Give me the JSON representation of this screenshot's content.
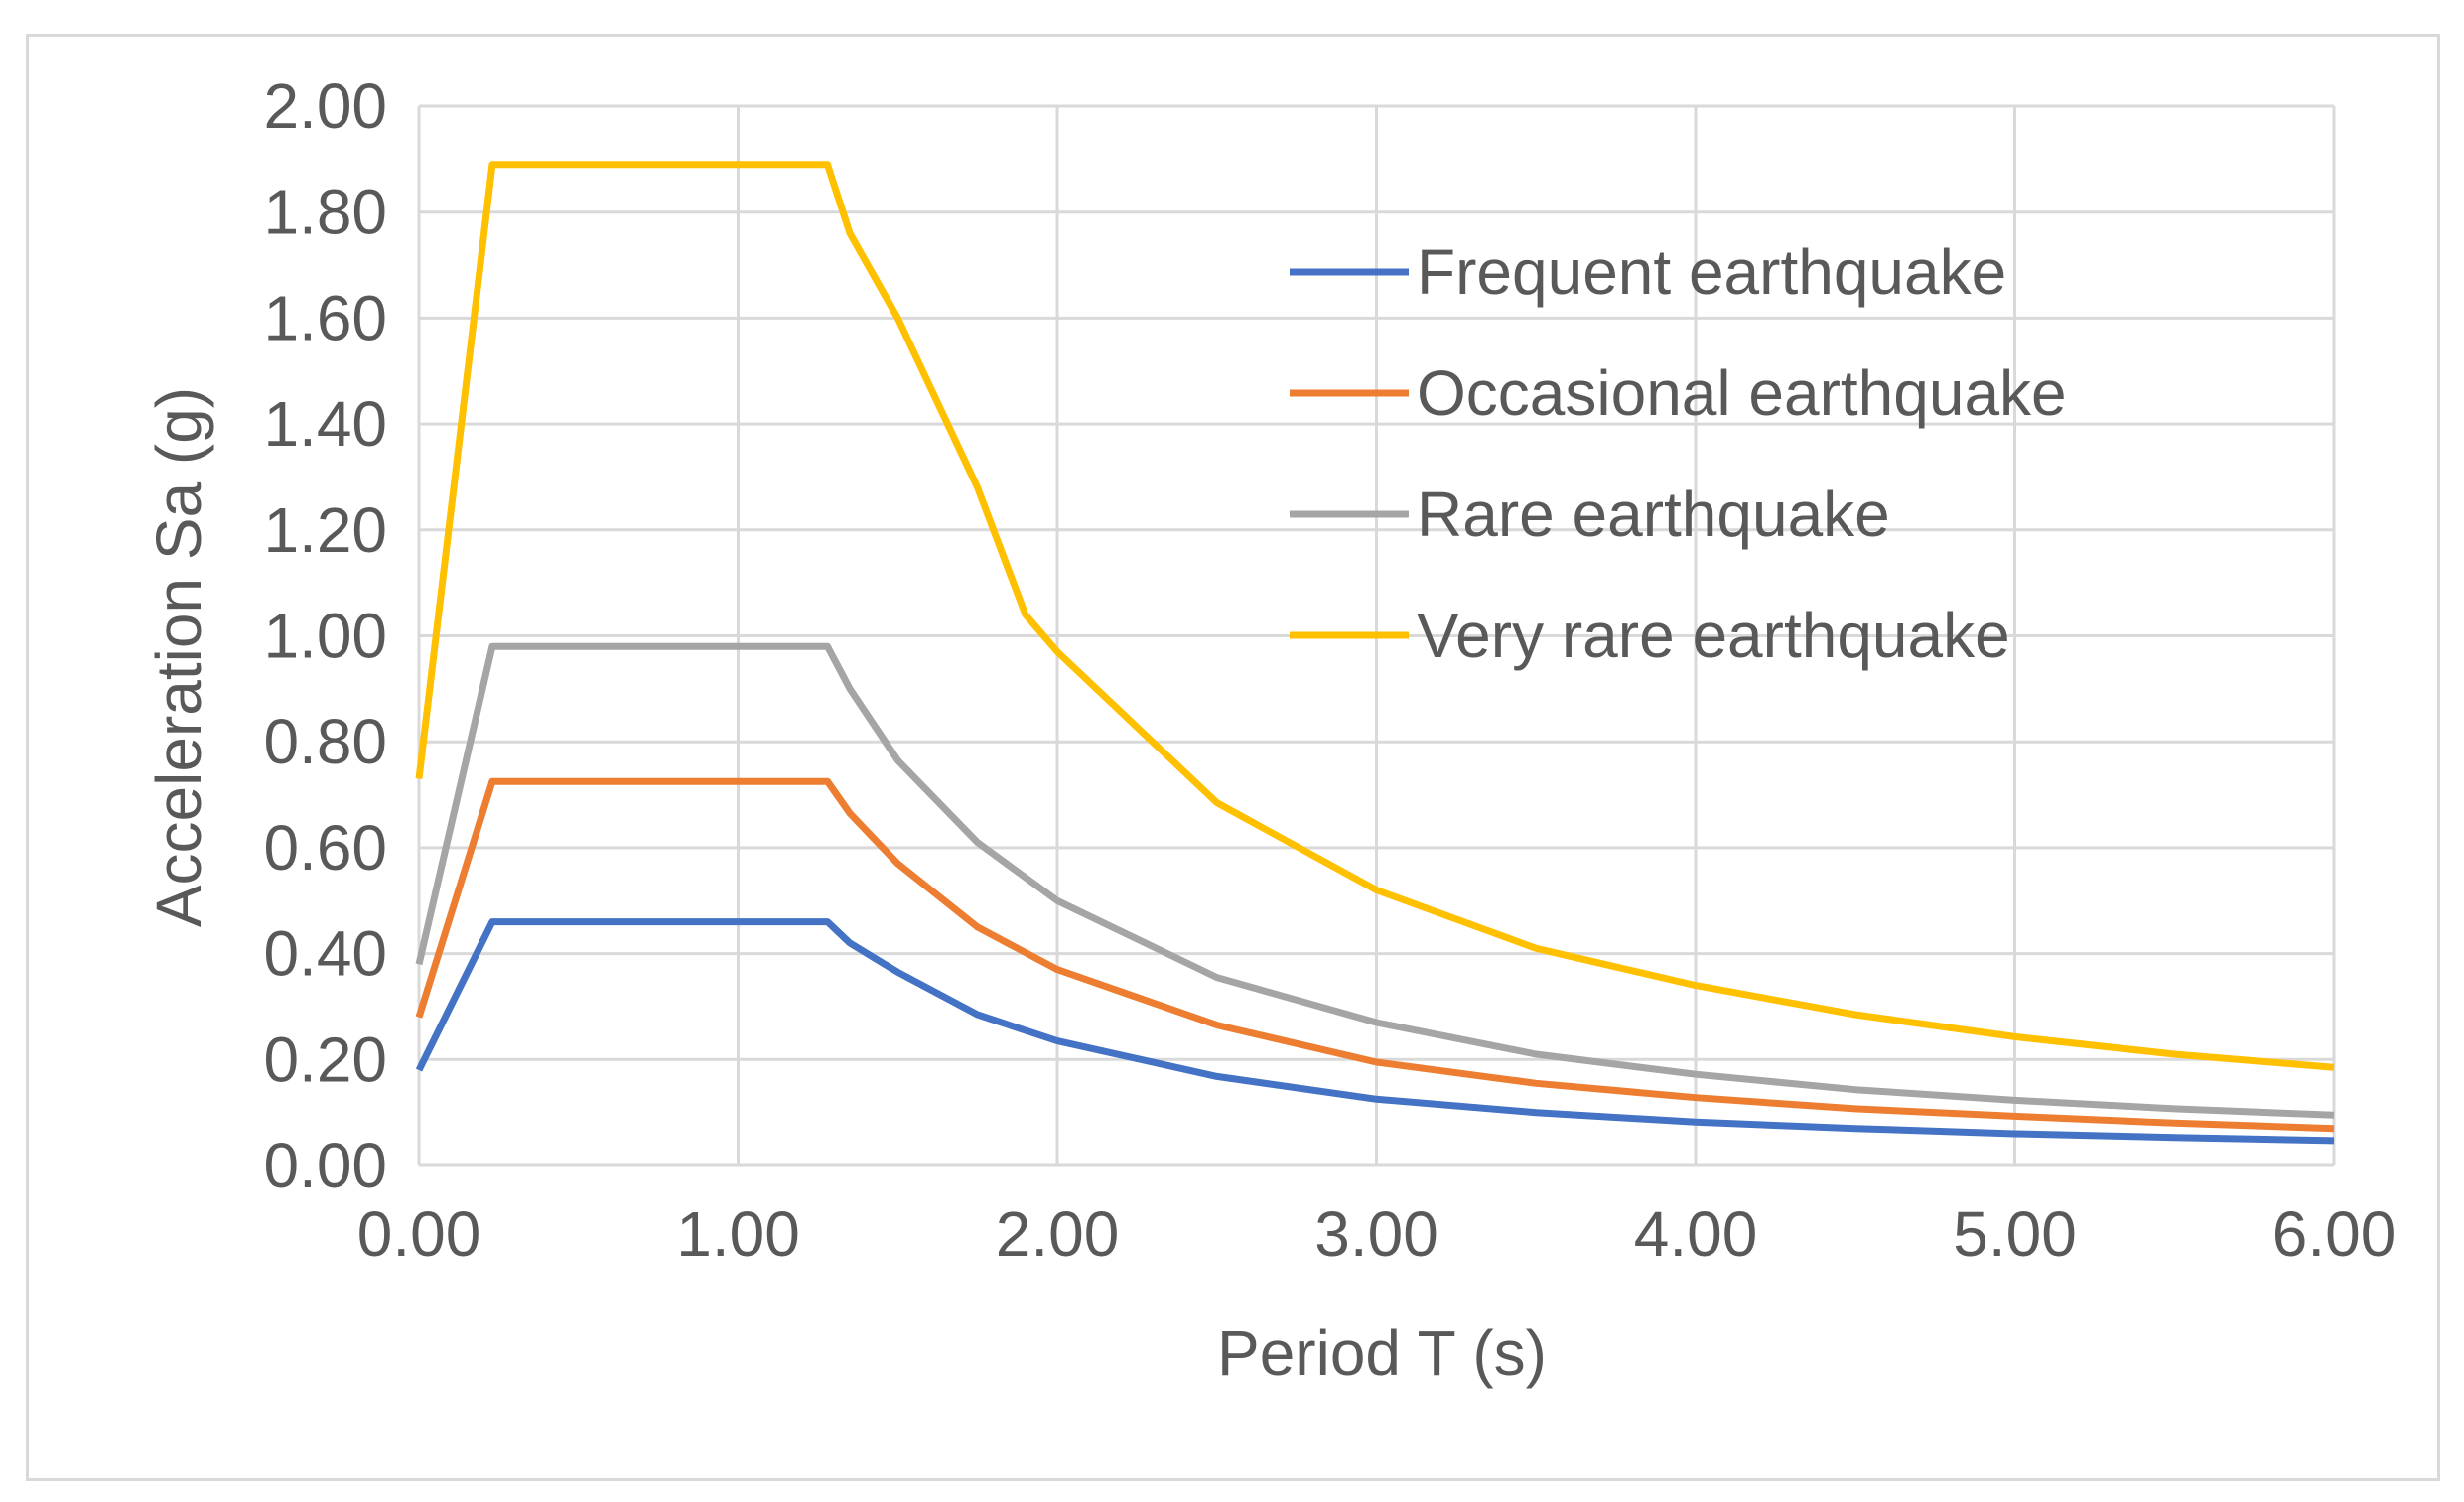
{
  "chart_data": {
    "type": "line",
    "xlabel": "Period T (s)",
    "ylabel": "Acceleration Sa (g)",
    "xlim": [
      0,
      6
    ],
    "ylim": [
      0,
      2
    ],
    "xticks": [
      "0.00",
      "1.00",
      "2.00",
      "3.00",
      "4.00",
      "5.00",
      "6.00"
    ],
    "yticks": [
      "0.00",
      "0.20",
      "0.40",
      "0.60",
      "0.80",
      "1.00",
      "1.20",
      "1.40",
      "1.60",
      "1.80",
      "2.00"
    ],
    "grid": true,
    "legend_position": "top-right",
    "series": [
      {
        "name": "Frequent earthquake",
        "color": "#4472C4",
        "points": [
          [
            0,
            0.18
          ],
          [
            0.23,
            0.46
          ],
          [
            1.28,
            0.46
          ],
          [
            1.35,
            0.42
          ],
          [
            1.5,
            0.365
          ],
          [
            1.75,
            0.285
          ],
          [
            2.0,
            0.235
          ],
          [
            2.5,
            0.168
          ],
          [
            3.0,
            0.125
          ],
          [
            3.5,
            0.1
          ],
          [
            4.0,
            0.082
          ],
          [
            4.5,
            0.07
          ],
          [
            5.0,
            0.06
          ],
          [
            5.5,
            0.053
          ],
          [
            6.0,
            0.047
          ]
        ]
      },
      {
        "name": "Occasional earthquake",
        "color": "#ED7D31",
        "points": [
          [
            0,
            0.28
          ],
          [
            0.23,
            0.725
          ],
          [
            1.28,
            0.725
          ],
          [
            1.35,
            0.665
          ],
          [
            1.5,
            0.57
          ],
          [
            1.75,
            0.45
          ],
          [
            2.0,
            0.37
          ],
          [
            2.5,
            0.265
          ],
          [
            3.0,
            0.195
          ],
          [
            3.5,
            0.155
          ],
          [
            4.0,
            0.128
          ],
          [
            4.5,
            0.107
          ],
          [
            5.0,
            0.093
          ],
          [
            5.5,
            0.08
          ],
          [
            6.0,
            0.07
          ]
        ]
      },
      {
        "name": "Rare earthquake",
        "color": "#A5A5A5",
        "points": [
          [
            0,
            0.38
          ],
          [
            0.23,
            0.98
          ],
          [
            1.28,
            0.98
          ],
          [
            1.35,
            0.9
          ],
          [
            1.5,
            0.765
          ],
          [
            1.75,
            0.61
          ],
          [
            2.0,
            0.5
          ],
          [
            2.5,
            0.355
          ],
          [
            3.0,
            0.27
          ],
          [
            3.5,
            0.21
          ],
          [
            4.0,
            0.172
          ],
          [
            4.5,
            0.143
          ],
          [
            5.0,
            0.123
          ],
          [
            5.5,
            0.107
          ],
          [
            6.0,
            0.095
          ]
        ]
      },
      {
        "name": "Very rare earthquake",
        "color": "#FFC000",
        "points": [
          [
            0,
            0.73
          ],
          [
            0.23,
            1.89
          ],
          [
            1.28,
            1.89
          ],
          [
            1.35,
            1.76
          ],
          [
            1.5,
            1.6
          ],
          [
            1.75,
            1.28
          ],
          [
            1.9,
            1.04
          ],
          [
            2.0,
            0.97
          ],
          [
            2.5,
            0.685
          ],
          [
            3.0,
            0.52
          ],
          [
            3.5,
            0.41
          ],
          [
            4.0,
            0.34
          ],
          [
            4.5,
            0.285
          ],
          [
            5.0,
            0.243
          ],
          [
            5.5,
            0.21
          ],
          [
            6.0,
            0.185
          ]
        ]
      }
    ],
    "gridline_color": "#d9d9d9"
  }
}
